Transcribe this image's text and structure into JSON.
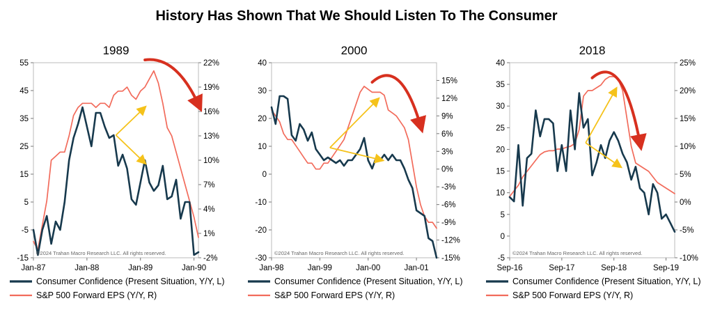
{
  "main_title": "History Has Shown That We Should Listen To The Consumer",
  "colors": {
    "cc": "#17394d",
    "eps": "#f26b5b",
    "arrow_red": "#d7301f",
    "arrow_yellow": "#f5c21a",
    "frame": "#bbbbbb",
    "copyright": "#666666"
  },
  "chart_data": [
    {
      "type": "line",
      "title": "1989",
      "copyright": "©2024 Trahan Macro Research LLC. All rights reserved.",
      "x_labels": [
        "Jan-87",
        "Jan-88",
        "Jan-89",
        "Jan-90"
      ],
      "x_label_positions": [
        0,
        12,
        24,
        36
      ],
      "x_range": [
        0,
        37
      ],
      "y_left": {
        "range": [
          -15,
          55
        ],
        "ticks": [
          -15,
          -5,
          5,
          15,
          25,
          35,
          45,
          55
        ],
        "tick_labels": [
          "-15",
          "-5",
          "5",
          "15",
          "25",
          "35",
          "45",
          "55"
        ]
      },
      "y_right": {
        "range": [
          -2,
          22
        ],
        "ticks": [
          -2,
          1,
          4,
          7,
          10,
          13,
          16,
          19,
          22
        ],
        "tick_labels": [
          "-2%",
          "1%",
          "4%",
          "7%",
          "10%",
          "13%",
          "16%",
          "19%",
          "22%"
        ]
      },
      "series": [
        {
          "name": "Consumer Confidence (Present Situation, Y/Y, L)",
          "axis": "left",
          "color": "#17394d",
          "width": 2.6,
          "x": [
            0,
            1,
            2,
            3,
            4,
            5,
            6,
            7,
            8,
            9,
            10,
            11,
            12,
            13,
            14,
            15,
            16,
            17,
            18,
            19,
            20,
            21,
            22,
            23,
            24,
            25,
            26,
            27,
            28,
            29,
            30,
            31,
            32,
            33,
            34,
            35,
            36,
            37
          ],
          "values": [
            -5,
            -14,
            -5,
            0,
            -10,
            -2,
            -5,
            5,
            20,
            28,
            33,
            39,
            32,
            25,
            37,
            37,
            32,
            28,
            29,
            18,
            22,
            17,
            6,
            4,
            12,
            20,
            12,
            9,
            11,
            18,
            6,
            7,
            13,
            -1,
            5,
            5,
            -14,
            -13
          ]
        },
        {
          "name": "S&P 500 Forward EPS (Y/Y, R)",
          "axis": "right",
          "color": "#f26b5b",
          "width": 1.7,
          "x": [
            0,
            1,
            2,
            3,
            4,
            5,
            6,
            7,
            8,
            9,
            10,
            11,
            12,
            13,
            14,
            15,
            16,
            17,
            18,
            19,
            20,
            21,
            22,
            23,
            24,
            25,
            26,
            27,
            28,
            29,
            30,
            31,
            32,
            33,
            34,
            35,
            36,
            37
          ],
          "values": [
            0,
            -1,
            2,
            5,
            10,
            10.5,
            11,
            11,
            13,
            15.5,
            16.5,
            17,
            17,
            17,
            16.5,
            17,
            17,
            16.5,
            18,
            18.5,
            18.5,
            19,
            18,
            17.5,
            18.5,
            19,
            20,
            21,
            19.5,
            17,
            14,
            13,
            11,
            9,
            7,
            5,
            3,
            0.5
          ]
        }
      ],
      "arrows": [
        {
          "kind": "red-arc",
          "path": [
            [
              25,
              56
            ],
            [
              32,
              53.5
            ],
            [
              37,
              40
            ]
          ],
          "target_axis": "left"
        }
      ],
      "yellow_arrows": [
        {
          "from": [
            18.5,
            29
          ],
          "to": [
            25,
            39
          ]
        },
        {
          "from": [
            18.5,
            29
          ],
          "to": [
            25,
            19
          ]
        }
      ]
    },
    {
      "type": "line",
      "title": "2000",
      "copyright": "©2024 Trahan Macro Research LLC. All rights reserved.",
      "x_labels": [
        "Jan-98",
        "Jan-99",
        "Jan-00",
        "Jan-01"
      ],
      "x_label_positions": [
        0,
        12,
        24,
        36
      ],
      "x_range": [
        0,
        41
      ],
      "y_left": {
        "range": [
          -30,
          40
        ],
        "ticks": [
          -30,
          -20,
          -10,
          0,
          10,
          20,
          30,
          40
        ],
        "tick_labels": [
          "-30",
          "-20",
          "-10",
          "0",
          "10",
          "20",
          "30",
          "40"
        ]
      },
      "y_right": {
        "range": [
          -15,
          18
        ],
        "ticks": [
          -15,
          -12,
          -9,
          -6,
          -3,
          0,
          3,
          6,
          9,
          12,
          15
        ],
        "tick_labels": [
          "-15%",
          "-12%",
          "-9%",
          "-6%",
          "-3%",
          "0%",
          "3%",
          "6%",
          "9%",
          "12%",
          "15%"
        ]
      },
      "series": [
        {
          "name": "Consumer Confidence (Present Situation, Y/Y, L)",
          "axis": "left",
          "color": "#17394d",
          "width": 2.6,
          "x": [
            0,
            1,
            2,
            3,
            4,
            5,
            6,
            7,
            8,
            9,
            10,
            11,
            12,
            13,
            14,
            15,
            16,
            17,
            18,
            19,
            20,
            21,
            22,
            23,
            24,
            25,
            26,
            27,
            28,
            29,
            30,
            31,
            32,
            33,
            34,
            35,
            36,
            37,
            38,
            39,
            40,
            41
          ],
          "values": [
            24,
            18,
            28,
            28,
            27,
            14,
            12,
            18,
            16,
            12,
            15,
            9,
            7,
            5,
            6,
            5,
            4,
            5,
            3,
            5,
            5,
            7,
            9,
            13,
            5,
            2,
            6,
            5,
            7,
            5,
            7,
            5,
            5,
            2,
            -2,
            -5,
            -13,
            -14,
            -15,
            -23,
            -24,
            -30
          ]
        },
        {
          "name": "S&P 500 Forward EPS (Y/Y, R)",
          "axis": "right",
          "color": "#f26b5b",
          "width": 1.7,
          "x": [
            0,
            1,
            2,
            3,
            4,
            5,
            6,
            7,
            8,
            9,
            10,
            11,
            12,
            13,
            14,
            15,
            16,
            17,
            18,
            19,
            20,
            21,
            22,
            23,
            24,
            25,
            26,
            27,
            28,
            29,
            30,
            31,
            32,
            33,
            34,
            35,
            36,
            37,
            38,
            39,
            40,
            41
          ],
          "values": [
            10,
            9,
            8,
            6,
            5,
            5,
            4,
            3,
            2,
            1,
            1,
            0,
            0,
            1,
            1,
            2,
            3,
            4,
            5,
            7,
            9,
            11,
            13,
            14,
            13.5,
            13,
            13,
            13,
            12.5,
            10,
            9.5,
            9,
            8,
            7,
            5,
            1,
            -3,
            -6,
            -8,
            -9,
            -9,
            -10
          ]
        }
      ],
      "arrows": [
        {
          "kind": "red-arc",
          "path": [
            [
              25,
              33
            ],
            [
              32,
              38
            ],
            [
              37,
              17.5
            ]
          ],
          "target_axis": "left"
        }
      ],
      "yellow_arrows": [
        {
          "from": [
            14.5,
            9.5
          ],
          "to": [
            26.5,
            27
          ]
        },
        {
          "from": [
            14.5,
            9.5
          ],
          "to": [
            27.5,
            5
          ]
        }
      ]
    },
    {
      "type": "line",
      "title": "2018",
      "copyright": "©2024 Trahan Macro Research LLC. All rights reserved.",
      "x_labels": [
        "Sep-16",
        "Sep-17",
        "Sep-18",
        "Sep-19"
      ],
      "x_label_positions": [
        0,
        12,
        24,
        36
      ],
      "x_range": [
        0,
        38
      ],
      "y_left": {
        "range": [
          -5,
          40
        ],
        "ticks": [
          -5,
          0,
          5,
          10,
          15,
          20,
          25,
          30,
          35,
          40
        ],
        "tick_labels": [
          "-5",
          "0",
          "5",
          "10",
          "15",
          "20",
          "25",
          "30",
          "35",
          "40"
        ]
      },
      "y_right": {
        "range": [
          -10,
          25
        ],
        "ticks": [
          -10,
          -5,
          0,
          5,
          10,
          15,
          20,
          25
        ],
        "tick_labels": [
          "-10%",
          "-5%",
          "0%",
          "5%",
          "10%",
          "15%",
          "20%",
          "25%"
        ]
      },
      "series": [
        {
          "name": "Consumer Confidence (Present Situation, Y/Y, L)",
          "axis": "left",
          "color": "#17394d",
          "width": 2.6,
          "x": [
            0,
            1,
            2,
            3,
            4,
            5,
            6,
            7,
            8,
            9,
            10,
            11,
            12,
            13,
            14,
            15,
            16,
            17,
            18,
            19,
            20,
            21,
            22,
            23,
            24,
            25,
            26,
            27,
            28,
            29,
            30,
            31,
            32,
            33,
            34,
            35,
            36,
            37,
            38
          ],
          "values": [
            9,
            8,
            21,
            7,
            18,
            19,
            29,
            23,
            27,
            27,
            26,
            15,
            21,
            15,
            29,
            20,
            33,
            25,
            27,
            14,
            17,
            21,
            18,
            22,
            24,
            22,
            19,
            17,
            13,
            16,
            11,
            10,
            5,
            12,
            10,
            4,
            5,
            3,
            1
          ]
        },
        {
          "name": "S&P 500 Forward EPS (Y/Y, R)",
          "axis": "right",
          "color": "#f26b5b",
          "width": 1.7,
          "x": [
            0,
            1,
            2,
            3,
            4,
            5,
            6,
            7,
            8,
            9,
            10,
            11,
            12,
            13,
            14,
            15,
            16,
            17,
            18,
            19,
            20,
            21,
            22,
            23,
            24,
            25,
            26,
            27,
            28,
            29,
            30,
            31,
            32,
            33,
            34,
            35,
            36,
            37,
            38
          ],
          "values": [
            1,
            2,
            3,
            4.5,
            5.5,
            6.5,
            7.5,
            8.5,
            9,
            9.2,
            9.2,
            9.5,
            9.5,
            9.8,
            10,
            10.5,
            13,
            19,
            20,
            20,
            20.5,
            21,
            22,
            22.5,
            22.5,
            22,
            20,
            15,
            10,
            7,
            6.5,
            6,
            5.5,
            4.5,
            3.5,
            3,
            2.5,
            2,
            1.5
          ]
        }
      ],
      "arrows": [
        {
          "kind": "red-arc",
          "path": [
            [
              19,
              36.5
            ],
            [
              26,
              40
            ],
            [
              30,
              21.5
            ]
          ],
          "target_axis": "left"
        }
      ],
      "yellow_arrows": [
        {
          "from": [
            17.5,
            21.5
          ],
          "to": [
            24.5,
            34
          ]
        },
        {
          "from": [
            17.5,
            21.5
          ],
          "to": [
            25.5,
            16
          ]
        }
      ]
    }
  ]
}
